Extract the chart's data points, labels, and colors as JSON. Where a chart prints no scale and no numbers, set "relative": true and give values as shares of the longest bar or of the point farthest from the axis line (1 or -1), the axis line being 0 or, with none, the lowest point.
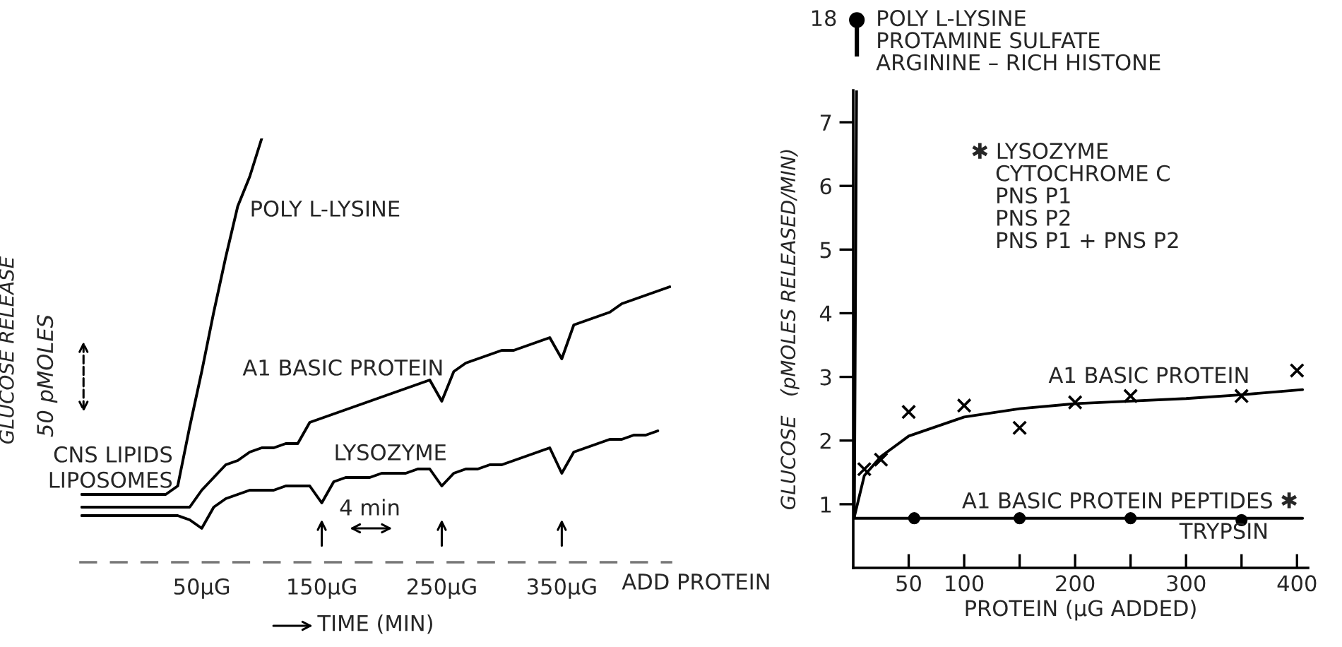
{
  "chart_data": [
    {
      "type": "line",
      "relative": true,
      "line_style": "solid",
      "xlabel": "TIME (MIN)",
      "ylabel": "GLUCOSE RELEASE",
      "categories": [
        null,
        null,
        null,
        null,
        null,
        null,
        null,
        null,
        null,
        null,
        "50μG",
        null,
        null,
        null,
        null,
        null,
        null,
        null,
        null,
        null,
        "150μG",
        null,
        null,
        null,
        null,
        null,
        null,
        null,
        null,
        null,
        "250μG",
        null,
        null,
        null,
        null,
        null,
        null,
        null,
        null,
        null,
        "350μG",
        null,
        null,
        null,
        null,
        null,
        null,
        null,
        null,
        null
      ],
      "series": [
        {
          "name": "POLY L-LYSINE",
          "color": "#000000",
          "values": [
            0.16,
            0.16,
            0.16,
            0.16,
            0.16,
            0.16,
            0.16,
            0.16,
            0.18,
            0.32,
            0.45,
            0.59,
            0.72,
            0.84,
            0.91,
            1,
            null,
            null,
            null,
            null,
            null,
            null,
            null,
            null,
            null,
            null,
            null,
            null,
            null,
            null,
            null,
            null,
            null,
            null,
            null,
            null,
            null,
            null,
            null,
            null,
            null,
            null,
            null,
            null,
            null,
            null,
            null,
            null,
            null,
            null
          ]
        },
        {
          "name": "A1 BASIC PROTEIN",
          "color": "#000000",
          "values": [
            0.13,
            0.13,
            0.13,
            0.13,
            0.13,
            0.13,
            0.13,
            0.13,
            0.13,
            0.13,
            0.17,
            0.2,
            0.23,
            0.24,
            0.26,
            0.27,
            0.27,
            0.28,
            0.28,
            0.33,
            0.34,
            0.35,
            0.36,
            0.37,
            0.38,
            0.39,
            0.4,
            0.41,
            0.42,
            0.43,
            0.38,
            0.45,
            0.47,
            0.48,
            0.49,
            0.5,
            0.5,
            0.51,
            0.52,
            0.53,
            0.48,
            0.56,
            0.57,
            0.58,
            0.59,
            0.61,
            0.62,
            0.63,
            0.64,
            0.65
          ]
        },
        {
          "name": "LYSOZYME",
          "color": "#000000",
          "values": [
            0.11,
            0.11,
            0.11,
            0.11,
            0.11,
            0.11,
            0.11,
            0.11,
            0.11,
            0.1,
            0.08,
            0.13,
            0.15,
            0.16,
            0.17,
            0.17,
            0.17,
            0.18,
            0.18,
            0.18,
            0.14,
            0.19,
            0.2,
            0.2,
            0.2,
            0.21,
            0.21,
            0.21,
            0.22,
            0.22,
            0.18,
            0.21,
            0.22,
            0.22,
            0.23,
            0.23,
            0.24,
            0.25,
            0.26,
            0.27,
            0.21,
            0.26,
            0.27,
            0.28,
            0.29,
            0.29,
            0.3,
            0.3,
            0.31,
            null
          ]
        }
      ],
      "annotations": [
        "CNS LIPIDS",
        "LIPOSOMES",
        "50 pMOLES",
        "ADD PROTEIN",
        "4 min"
      ]
    },
    {
      "type": "other",
      "annotations": [
        "POLY L-LYSINE",
        "PROTAMINE SULFATE",
        "ARGININE – RICH HISTONE",
        "18"
      ]
    },
    {
      "type": "scatter",
      "xlim": [
        0,
        410
      ],
      "ylim": [
        0,
        7.5
      ],
      "xlabel": "PROTEIN (μG ADDED)",
      "ylabel": "GLUCOSE   (pMOLES RELEASED/MIN)",
      "xticks": [
        50,
        100,
        {
          "value": 150,
          "label": null
        },
        200,
        {
          "value": 250,
          "label": null
        },
        300,
        {
          "value": 350,
          "label": null
        },
        400
      ],
      "yticks": [
        1,
        2,
        3,
        4,
        5,
        6,
        7
      ],
      "series": [
        {
          "type": "line",
          "color": "#000000",
          "x": [
            1,
            3
          ],
          "values": [
            0.8,
            7.5
          ]
        },
        {
          "type": "line",
          "name": "A1 BASIC PROTEIN",
          "color": "#000000",
          "x": [
            1,
            10,
            25,
            50,
            100,
            150,
            200,
            250,
            300,
            350,
            405
          ],
          "values": [
            0.8,
            1.45,
            1.75,
            2.07,
            2.37,
            2.5,
            2.58,
            2.62,
            2.66,
            2.72,
            2.8
          ]
        },
        {
          "type": "scatter",
          "marker": "cross",
          "color": "#000000",
          "x": [
            10,
            25,
            50,
            100,
            150,
            200,
            250,
            350,
            400
          ],
          "values": [
            1.55,
            1.7,
            2.45,
            2.55,
            2.2,
            2.6,
            2.7,
            2.7,
            3.1
          ]
        },
        {
          "type": "line",
          "color": "#000000",
          "x": [
            0,
            405
          ],
          "values": [
            0.78,
            0.78
          ]
        },
        {
          "type": "scatter",
          "marker": "circle",
          "color": "#000000",
          "x": [
            55,
            150,
            250,
            350
          ],
          "values": [
            0.78,
            0.78,
            0.78,
            0.75
          ]
        }
      ],
      "annotations": [
        "✱ LYSOZYME",
        "CYTOCHROME C",
        "PNS P1",
        "PNS P2",
        "PNS P1 + PNS P2",
        "A1 BASIC PROTEIN PEPTIDES ✱",
        "TRYPSIN"
      ]
    }
  ]
}
